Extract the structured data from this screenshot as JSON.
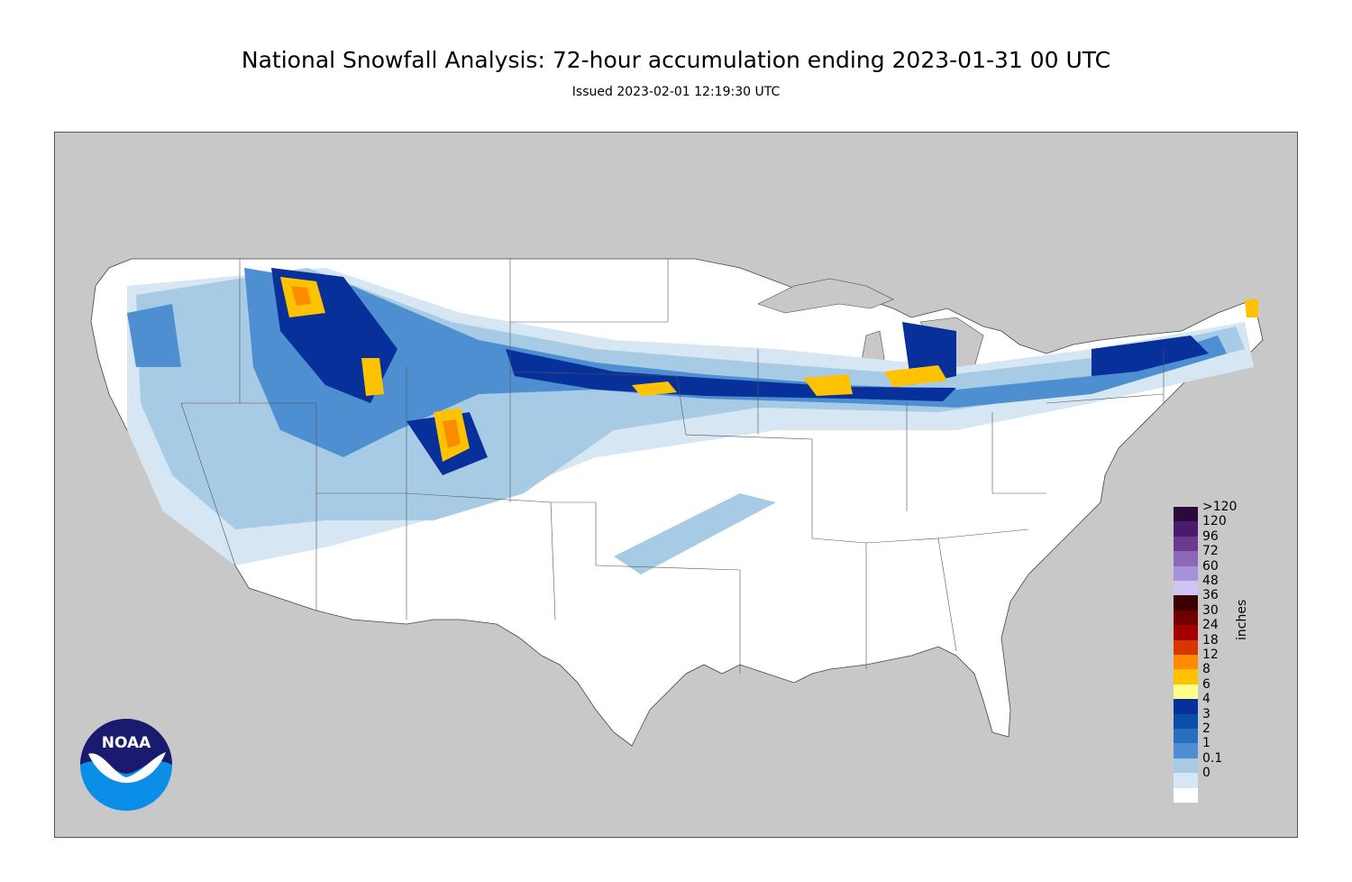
{
  "title": "National Snowfall Analysis: 72-hour accumulation ending 2023-01-31 00 UTC",
  "subtitle": "Issued 2023-02-01 12:19:30 UTC",
  "logo": {
    "text": "NOAA",
    "colors": {
      "top": "#1a1a6e",
      "bottom": "#0a8ee8",
      "bird": "#ffffff"
    }
  },
  "legend": {
    "unit": "inches",
    "items": [
      {
        "label": ">120",
        "color": "#2a0a3a"
      },
      {
        "label": "120",
        "color": "#4b1b6b"
      },
      {
        "label": "96",
        "color": "#6a3a91"
      },
      {
        "label": "72",
        "color": "#8c67b8"
      },
      {
        "label": "60",
        "color": "#a592db"
      },
      {
        "label": "48",
        "color": "#cec5f5"
      },
      {
        "label": "36",
        "color": "#3a0000"
      },
      {
        "label": "30",
        "color": "#6e0000"
      },
      {
        "label": "24",
        "color": "#a30000"
      },
      {
        "label": "18",
        "color": "#d93500"
      },
      {
        "label": "12",
        "color": "#ff8b00"
      },
      {
        "label": "8",
        "color": "#ffc200"
      },
      {
        "label": "6",
        "color": "#ffff8c"
      },
      {
        "label": "4",
        "color": "#08309a"
      },
      {
        "label": "3",
        "color": "#0a4ea8"
      },
      {
        "label": "2",
        "color": "#2a6fbd"
      },
      {
        "label": "1",
        "color": "#4d8fd0"
      },
      {
        "label": "0.1",
        "color": "#a7cbe4"
      },
      {
        "label": "0",
        "color": "#d6e6f2"
      }
    ],
    "zero_color": "#ffffff"
  },
  "map": {
    "ocean_color": "#c8c8c8",
    "land_color": "#ffffff"
  }
}
